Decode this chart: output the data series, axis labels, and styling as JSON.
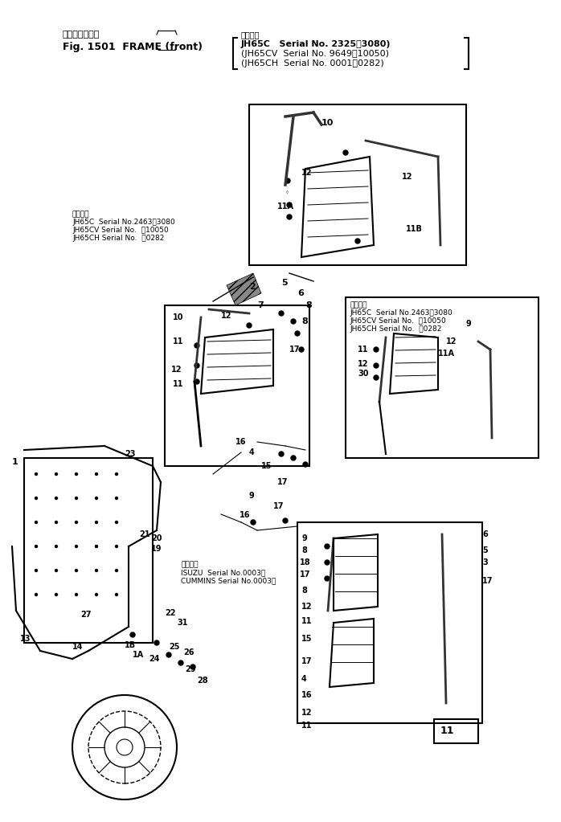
{
  "title_line1": "フレーム（前）",
  "title_line2": "Fig. 1501  FRAME (front)",
  "serial_header": "適用号機",
  "serial_lines": [
    "JH65C   Serial No. 2325～3080)",
    "(JH65CV  Serial No. 9649～10050)",
    "(JH65CH  Serial No. 0001～0282)"
  ],
  "note1_lines": [
    "適用号機",
    "JH65C  Serial No.2463～3080",
    "JH65CV Serial No.  ～10050",
    "JH65CH Serial No.  ～0282"
  ],
  "note2_lines": [
    "適用号機",
    "JH65C  Serial No.2463～3080",
    "JH65CV Serial No.  ～10050",
    "JH65CH Serial No.  ～0282"
  ],
  "note3_lines": [
    "適用号機",
    "ISUZU  Serial No.0003～",
    "CUMMINS Serial No.0003～"
  ],
  "bg_color": "#ffffff",
  "line_color": "#000000",
  "text_color": "#000000"
}
